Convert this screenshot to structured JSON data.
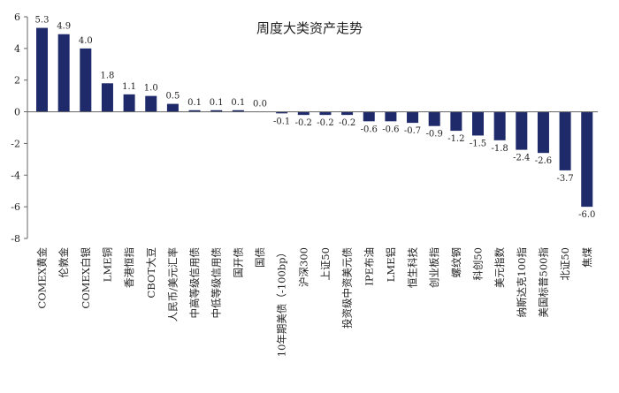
{
  "chart_data": {
    "type": "bar",
    "title": "周度大类资产走势",
    "xlabel": "",
    "ylabel": "",
    "ylim": [
      -8,
      6
    ],
    "yticks": [
      -8,
      -6,
      -4,
      -2,
      0,
      2,
      4,
      6
    ],
    "grid": false,
    "legend": "none",
    "bar_color": "#1f2a6b",
    "categories": [
      "COMEX黄金",
      "伦敦金",
      "COMEX白银",
      "LME铜",
      "香港恒指",
      "CBOT大豆",
      "人民币/美元汇率",
      "中高等级信用债",
      "中低等级信用债",
      "国开债",
      "国债",
      "10年期美债（-100bp）",
      "沪深300",
      "上证50",
      "投资级中资美元债",
      "IPE布油",
      "LME铝",
      "恒生科技",
      "创业板指",
      "螺纹钢",
      "科创50",
      "美元指数",
      "纳斯达克100指",
      "美国标普500指",
      "北证50",
      "焦煤"
    ],
    "values": [
      5.3,
      4.9,
      4.0,
      1.8,
      1.1,
      1.0,
      0.5,
      0.1,
      0.1,
      0.1,
      0.0,
      -0.1,
      -0.2,
      -0.2,
      -0.2,
      -0.6,
      -0.6,
      -0.7,
      -0.9,
      -1.2,
      -1.5,
      -1.8,
      -2.4,
      -2.6,
      -3.7,
      -6.0
    ],
    "value_labels": [
      "5.3",
      "4.9",
      "4.0",
      "1.8",
      "1.1",
      "1.0",
      "0.5",
      "0.1",
      "0.1",
      "0.1",
      "0.0",
      "-0.1",
      "-0.2",
      "-0.2",
      "-0.2",
      "-0.6",
      "-0.6",
      "-0.7",
      "-0.9",
      "-1.2",
      "-1.5",
      "-1.8",
      "-2.4",
      "-2.6",
      "-3.7",
      "-6.0"
    ]
  }
}
